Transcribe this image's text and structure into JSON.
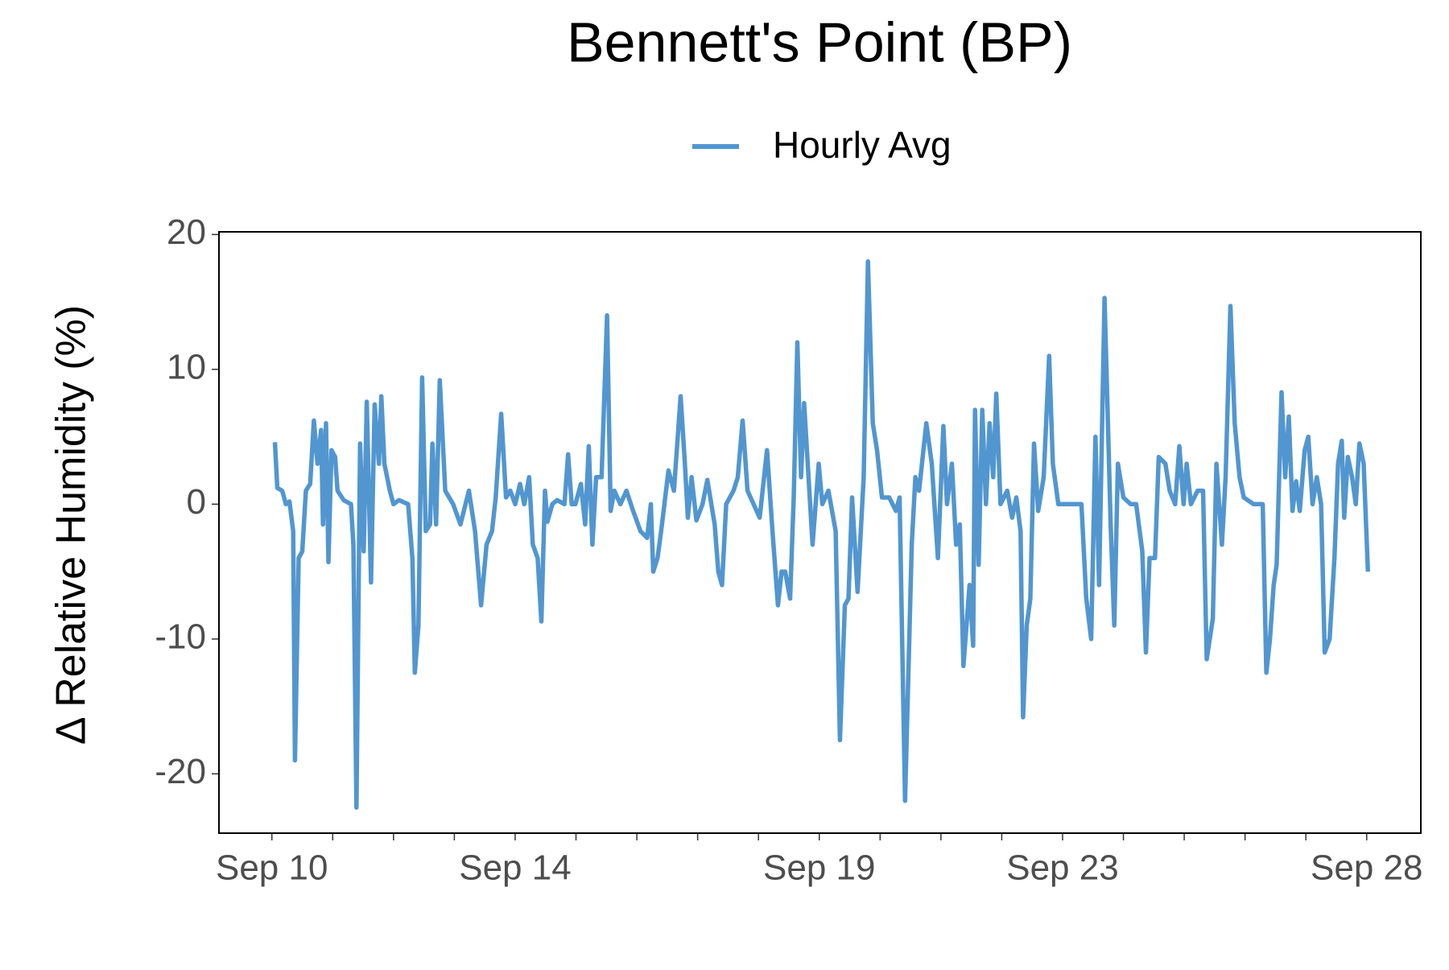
{
  "chart_data": {
    "type": "line",
    "title": "Bennett's Point (BP)",
    "y_label": "Δ Relative Humidity (%)",
    "x": [
      10.05,
      10.09,
      10.17,
      10.23,
      10.29,
      10.35,
      10.38,
      10.44,
      10.5,
      10.56,
      10.63,
      10.69,
      10.75,
      10.81,
      10.84,
      10.89,
      10.93,
      10.98,
      11.04,
      11.08,
      11.18,
      11.3,
      11.34,
      11.39,
      11.45,
      11.51,
      11.56,
      11.63,
      11.69,
      11.76,
      11.8,
      11.85,
      11.94,
      12.0,
      12.09,
      12.24,
      12.31,
      12.35,
      12.41,
      12.47,
      12.53,
      12.6,
      12.64,
      12.7,
      12.76,
      12.85,
      12.98,
      13.1,
      13.24,
      13.34,
      13.44,
      13.53,
      13.62,
      13.68,
      13.77,
      13.85,
      13.92,
      14.0,
      14.08,
      14.15,
      14.23,
      14.29,
      14.37,
      14.43,
      14.49,
      14.53,
      14.61,
      14.69,
      14.81,
      14.87,
      14.93,
      14.99,
      15.08,
      15.15,
      15.21,
      15.27,
      15.33,
      15.42,
      15.51,
      15.57,
      15.63,
      15.73,
      15.83,
      15.94,
      16.06,
      16.17,
      16.23,
      16.27,
      16.34,
      16.4,
      16.52,
      16.61,
      16.72,
      16.79,
      16.84,
      16.9,
      16.98,
      17.08,
      17.16,
      17.28,
      17.34,
      17.4,
      17.47,
      17.59,
      17.66,
      17.74,
      17.82,
      17.92,
      18.02,
      18.14,
      18.23,
      18.32,
      18.38,
      18.44,
      18.52,
      18.58,
      18.64,
      18.7,
      18.75,
      18.81,
      18.89,
      18.99,
      19.05,
      19.15,
      19.27,
      19.34,
      19.42,
      19.48,
      19.54,
      19.63,
      19.73,
      19.8,
      19.88,
      19.95,
      20.03,
      20.15,
      20.26,
      20.32,
      20.41,
      20.52,
      20.58,
      20.64,
      20.76,
      20.85,
      20.95,
      21.04,
      21.1,
      21.18,
      21.25,
      21.31,
      21.37,
      21.47,
      21.53,
      21.56,
      21.62,
      21.68,
      21.74,
      21.8,
      21.86,
      21.91,
      21.98,
      22.09,
      22.17,
      22.24,
      22.31,
      22.35,
      22.41,
      22.47,
      22.53,
      22.6,
      22.69,
      22.78,
      22.84,
      22.93,
      23.08,
      23.24,
      23.31,
      23.39,
      23.47,
      23.54,
      23.6,
      23.69,
      23.79,
      23.85,
      23.91,
      24.0,
      24.12,
      24.21,
      24.31,
      24.37,
      24.43,
      24.52,
      24.58,
      24.69,
      24.76,
      24.85,
      24.92,
      24.99,
      25.04,
      25.11,
      25.22,
      25.31,
      25.37,
      25.47,
      25.53,
      25.62,
      25.68,
      25.76,
      25.83,
      25.91,
      25.98,
      26.14,
      26.29,
      26.35,
      26.41,
      26.47,
      26.52,
      26.6,
      26.66,
      26.72,
      26.78,
      26.84,
      26.9,
      26.98,
      27.04,
      27.11,
      27.18,
      27.25,
      27.31,
      27.39,
      27.47,
      27.53,
      27.59,
      27.63,
      27.69,
      27.76,
      27.82,
      27.88,
      27.95,
      28.02
    ],
    "series": [
      {
        "name": "Hourly Avg",
        "color": "#5296d0",
        "values": [
          4.6,
          1.2,
          1,
          0,
          0.2,
          -2,
          -19,
          -4,
          -3.5,
          1,
          1.5,
          6.2,
          3,
          5.5,
          -1.5,
          6,
          -4.3,
          4,
          3.5,
          1,
          0.3,
          0,
          -3,
          -22.5,
          4.5,
          -3.5,
          7.6,
          -5.8,
          7.4,
          3,
          8,
          3,
          1,
          0,
          0.3,
          0,
          -4,
          -12.5,
          -9,
          9.4,
          -2,
          -1.5,
          4.5,
          -1.5,
          9.2,
          1,
          0,
          -1.5,
          1,
          -2,
          -7.5,
          -3,
          -2,
          0.5,
          6.7,
          0.5,
          1,
          0,
          1.5,
          0,
          2,
          -3,
          -4,
          -8.7,
          1,
          -1.3,
          0,
          0.3,
          0,
          3.7,
          0,
          0,
          1.5,
          -1.5,
          4.3,
          -3,
          2,
          2,
          14,
          -0.5,
          1,
          0,
          1,
          -0.5,
          -2,
          -2.5,
          0,
          -5,
          -4,
          -2,
          2.5,
          1,
          8,
          3,
          -1,
          2,
          -1.2,
          0,
          1.8,
          -1.5,
          -5,
          -6,
          0,
          1,
          2,
          6.2,
          1,
          0,
          -1,
          4,
          -2,
          -7.5,
          -5,
          -5,
          -7,
          0.5,
          12,
          2,
          7.5,
          3,
          -3,
          3,
          0,
          1,
          -2,
          -17.5,
          -7.5,
          -7,
          0.5,
          -6.5,
          2,
          18,
          6,
          4,
          0.5,
          0.5,
          -0.5,
          0.5,
          -22,
          -3,
          2,
          1,
          6,
          3,
          -4,
          5.8,
          0,
          3,
          -3,
          -1.5,
          -12,
          -6,
          -10.5,
          7,
          -4.5,
          7,
          0,
          6,
          2,
          8.2,
          0,
          1,
          -1,
          0.5,
          -2,
          -15.8,
          -9,
          -7,
          4.5,
          -0.5,
          2,
          11,
          3,
          0,
          0,
          0,
          0,
          -7,
          -10,
          5,
          -6,
          15.3,
          -1.5,
          -9,
          3,
          0.5,
          0,
          0,
          -3.5,
          -11,
          -4,
          -4,
          3.5,
          3,
          1,
          0,
          4.3,
          0,
          3,
          0,
          1,
          1,
          -11.5,
          -8.5,
          3,
          -3,
          2,
          14.7,
          6,
          2,
          0.5,
          0,
          0,
          -12.5,
          -10,
          -6,
          -4.5,
          8.3,
          2,
          6.5,
          -0.5,
          1.7,
          -0.5,
          4,
          5,
          0,
          2,
          0,
          -11,
          -10,
          -4,
          3,
          4.7,
          -1,
          3.5,
          2,
          0,
          4.5,
          3,
          -5
        ]
      }
    ],
    "xlim": [
      9.13,
      28.89
    ],
    "xticks": [
      {
        "value": 10,
        "label": "Sep 10"
      },
      {
        "value": 14,
        "label": "Sep 14"
      },
      {
        "value": 19,
        "label": "Sep 19"
      },
      {
        "value": 23,
        "label": "Sep 23"
      },
      {
        "value": 28,
        "label": "Sep 28"
      }
    ],
    "xminor_ticks": [
      11,
      12,
      13,
      15,
      16,
      17,
      18,
      20,
      21,
      22,
      24,
      25,
      26,
      27
    ],
    "ylim": [
      -24.4,
      20.2
    ],
    "yticks": [
      -20,
      -10,
      0,
      10,
      20
    ],
    "grid": false,
    "legend": "top"
  }
}
